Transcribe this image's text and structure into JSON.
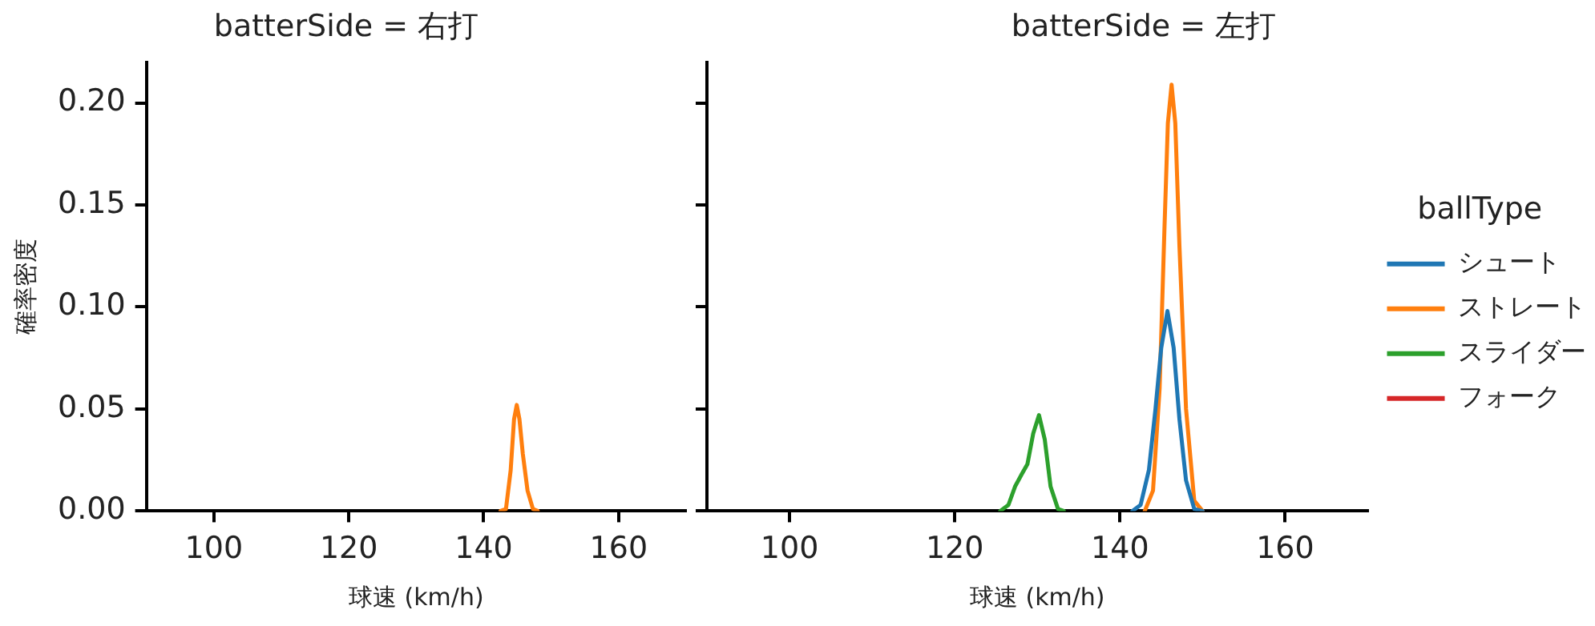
{
  "chart_data": [
    {
      "type": "line",
      "title": "batterSide = 右打",
      "xlabel": "球速 (km/h)",
      "ylabel": "確率密度",
      "xlim": [
        90,
        170
      ],
      "xticks": [
        100,
        120,
        140,
        160
      ],
      "ylim": [
        0,
        0.22
      ],
      "yticks": [
        {
          "value": 0,
          "label": "0.00"
        },
        {
          "value": 0.05,
          "label": "0.05"
        },
        {
          "value": 0.1,
          "label": "0.10"
        },
        {
          "value": 0.15,
          "label": "0.15"
        },
        {
          "value": 0.2,
          "label": "0.20"
        }
      ],
      "grid": false,
      "legend": false,
      "series": [
        {
          "color": "#ff7f0e",
          "x": [
            142.5,
            143.3,
            144,
            144.5,
            144.9,
            145.3,
            145.8,
            146.5,
            147.3,
            148
          ],
          "values": [
            0,
            0.001,
            0.02,
            0.045,
            0.052,
            0.045,
            0.028,
            0.01,
            0.001,
            0
          ]
        }
      ]
    },
    {
      "type": "line",
      "title": "batterSide = 左打",
      "xlabel": "球速 (km/h)",
      "xlim": [
        90,
        170
      ],
      "xticks": [
        100,
        120,
        140,
        160
      ],
      "ylim": [
        0,
        0.22
      ],
      "yticks": [
        0,
        0.05,
        0.1,
        0.15,
        0.2
      ],
      "tick_labels": "x",
      "grid": false,
      "legend": "right",
      "legend_title": "ballType",
      "series": [
        {
          "name": "シュート",
          "color": "#1f77b4",
          "x": [
            141.5,
            142.5,
            143.5,
            144.3,
            145,
            145.75,
            146.5,
            147.2,
            148,
            149,
            150
          ],
          "values": [
            0,
            0.003,
            0.02,
            0.05,
            0.08,
            0.098,
            0.08,
            0.045,
            0.015,
            0.001,
            0
          ]
        },
        {
          "name": "ストレート",
          "color": "#ff7f0e",
          "x": [
            143,
            144,
            144.8,
            145.4,
            145.8,
            146.25,
            146.7,
            147.2,
            148,
            149,
            150
          ],
          "values": [
            0,
            0.01,
            0.06,
            0.14,
            0.19,
            0.209,
            0.19,
            0.13,
            0.05,
            0.005,
            0
          ]
        },
        {
          "name": "スライダー",
          "color": "#2ca02c",
          "x": [
            125.5,
            126.5,
            127.3,
            128.1,
            128.8,
            129.5,
            130.2,
            130.9,
            131.6,
            132.5,
            133.2
          ],
          "values": [
            0,
            0.003,
            0.012,
            0.018,
            0.023,
            0.038,
            0.047,
            0.035,
            0.012,
            0.001,
            0
          ]
        },
        {
          "name": "フォーク",
          "color": "#d62728"
        }
      ]
    }
  ]
}
